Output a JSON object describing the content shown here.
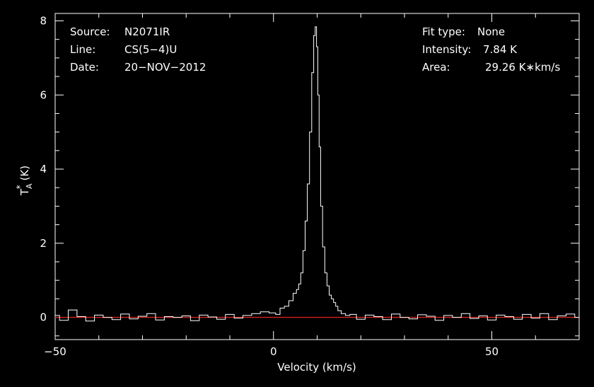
{
  "chart_data": {
    "type": "line",
    "xlabel": "Velocity (km/s)",
    "ylabel": "T",
    "ylabel_sub": "A",
    "ylabel_sup": "*",
    "ylabel_unit": "(K)",
    "xlim": [
      -50,
      70
    ],
    "ylim": [
      -0.6,
      8.2
    ],
    "x_ticks": [
      -50,
      0,
      50
    ],
    "x_tick_labels": [
      "−50",
      "0",
      "50"
    ],
    "y_ticks": [
      0,
      2,
      4,
      6,
      8
    ],
    "y_tick_labels": [
      "0",
      "2",
      "4",
      "6",
      "8"
    ],
    "info_left": [
      {
        "key": "Source:",
        "value": "N2071IR"
      },
      {
        "key": "Line:",
        "value": "CS(5−4)U"
      },
      {
        "key": "Date:",
        "value": "20−NOV−2012"
      }
    ],
    "info_right": [
      {
        "key": "Fit type:",
        "value": "None"
      },
      {
        "key": "Intensity:",
        "value": "7.84 K"
      },
      {
        "key": "Area:",
        "value": "29.26 K∗km/s"
      }
    ],
    "baseline": 0,
    "peak": {
      "x": 9.7,
      "y": 7.84
    },
    "series": [
      {
        "x": [
          -50,
          -48,
          -46,
          -44,
          -42,
          -40,
          -38,
          -36,
          -34,
          -32,
          -30,
          -28,
          -26,
          -24,
          -22,
          -20,
          -18,
          -16,
          -14,
          -12,
          -10,
          -8,
          -6,
          -4,
          -2,
          0,
          1,
          2,
          3,
          4,
          5,
          5.5,
          6,
          6.5,
          7,
          7.5,
          8,
          8.5,
          9,
          9.4,
          9.7,
          10,
          10.3,
          10.6,
          11,
          11.5,
          12,
          12.5,
          13,
          13.5,
          14,
          14.5,
          15,
          16,
          17,
          18,
          20,
          22,
          24,
          26,
          28,
          30,
          32,
          34,
          36,
          38,
          40,
          42,
          44,
          46,
          48,
          50,
          52,
          54,
          56,
          58,
          60,
          62,
          64,
          66,
          68,
          70
        ],
        "y": [
          0.05,
          -0.08,
          0.2,
          0.02,
          -0.1,
          0.06,
          0.0,
          -0.06,
          0.09,
          -0.04,
          0.03,
          0.1,
          -0.07,
          0.02,
          0.0,
          0.04,
          -0.09,
          0.06,
          0.01,
          -0.05,
          0.08,
          -0.02,
          0.05,
          0.1,
          0.15,
          0.12,
          0.08,
          0.25,
          0.3,
          0.45,
          0.65,
          0.75,
          0.9,
          1.2,
          1.8,
          2.6,
          3.6,
          5.0,
          6.6,
          7.6,
          7.84,
          7.3,
          6.0,
          4.6,
          3.0,
          1.9,
          1.2,
          0.85,
          0.6,
          0.5,
          0.4,
          0.3,
          0.18,
          0.1,
          0.05,
          0.08,
          -0.05,
          0.06,
          0.02,
          -0.06,
          0.09,
          0.0,
          -0.04,
          0.07,
          0.03,
          -0.08,
          0.05,
          0.0,
          0.1,
          -0.03,
          0.04,
          -0.07,
          0.06,
          0.02,
          -0.05,
          0.08,
          -0.02,
          0.1,
          -0.06,
          0.04,
          0.09,
          0.0
        ]
      }
    ]
  }
}
